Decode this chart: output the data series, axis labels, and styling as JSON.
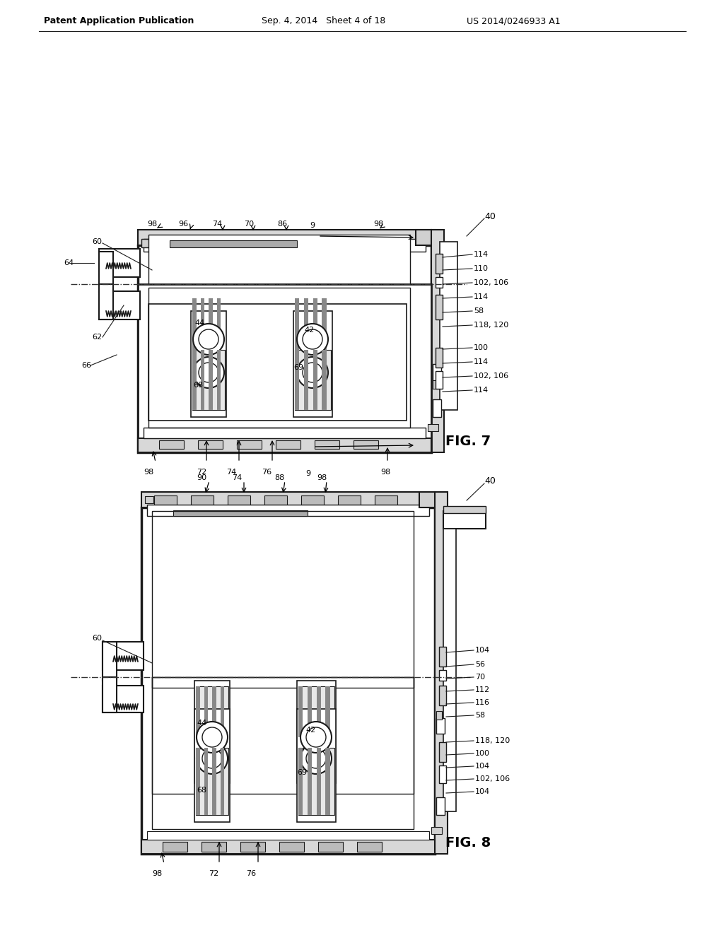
{
  "bg_color": "#ffffff",
  "fig_width": 10.24,
  "fig_height": 13.2,
  "header_left": "Patent Application Publication",
  "header_center": "Sep. 4, 2014   Sheet 4 of 18",
  "header_right": "US 2014/0246933 A1"
}
